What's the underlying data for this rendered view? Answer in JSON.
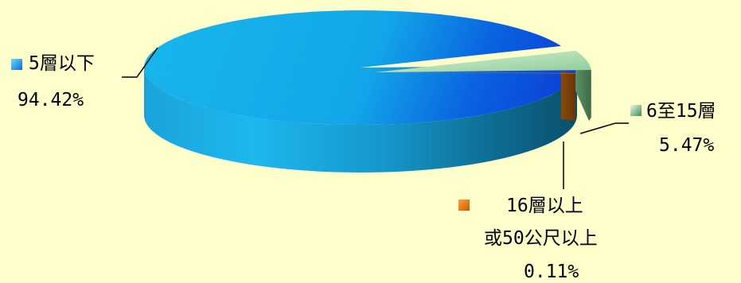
{
  "chart_data": {
    "type": "pie",
    "style": "3d",
    "title": "",
    "slices": [
      {
        "label": "5層以下",
        "value": 94.42,
        "value_label": "94.42%",
        "color": "#1BAEEA"
      },
      {
        "label": "6至15層",
        "value": 5.47,
        "value_label": "5.47%",
        "color": "#9FD8A6"
      },
      {
        "label_lines": [
          "16層以上",
          "或50公尺以上"
        ],
        "value": 0.11,
        "value_label": "0.11%",
        "color": "#E8720C"
      }
    ],
    "legend_markers": true
  },
  "labels": {
    "slice_0": {
      "name": "5層以下",
      "value": "94.42%"
    },
    "slice_1": {
      "name": "6至15層",
      "value": "5.47%"
    },
    "slice_2": {
      "line1": "16層以上",
      "line2": "或50公尺以上",
      "value": "0.11%"
    }
  }
}
